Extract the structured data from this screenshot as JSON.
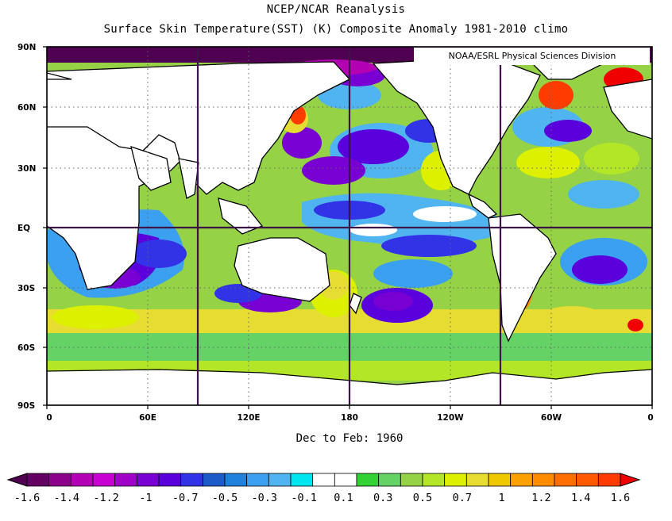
{
  "titles": {
    "main": "NCEP/NCAR Reanalysis",
    "sub": "Surface Skin Temperature(SST) (K) Composite Anomaly 1981-2010 climo"
  },
  "credit": "NOAA/ESRL Physical Sciences Division",
  "time_label": "Dec to Feb: 1960",
  "map": {
    "projection": "equirectangular",
    "lon_range": [
      0,
      360
    ],
    "lat_range": [
      -90,
      90
    ],
    "y_ticks": [
      "90N",
      "60N",
      "30N",
      "EQ",
      "30S",
      "60S",
      "90S"
    ],
    "x_ticks": [
      "0",
      "60E",
      "120E",
      "180",
      "120W",
      "60W",
      "0"
    ],
    "grid": "dotted",
    "land_color": "#ffffff"
  },
  "colorbar": {
    "ticks": [
      "-1.6",
      "-1.4",
      "-1.2",
      "-1",
      "-0.7",
      "-0.5",
      "-0.3",
      "-0.1",
      "0.1",
      "0.3",
      "0.5",
      "0.7",
      "1",
      "1.2",
      "1.4",
      "1.6"
    ],
    "colors": [
      "#500050",
      "#640064",
      "#8c008c",
      "#b400b4",
      "#c800d2",
      "#a000c8",
      "#7800d2",
      "#5a00dc",
      "#3232e6",
      "#1e5ac8",
      "#1e82dc",
      "#3ca0f0",
      "#50b4f0",
      "#00e6f0",
      "#ffffff",
      "#ffffff",
      "#32d232",
      "#64d264",
      "#96d246",
      "#b4e628",
      "#dcf000",
      "#e6dc32",
      "#f0c800",
      "#faa000",
      "#ff8c00",
      "#ff6e00",
      "#ff5a00",
      "#ff3c00",
      "#f00000"
    ]
  }
}
